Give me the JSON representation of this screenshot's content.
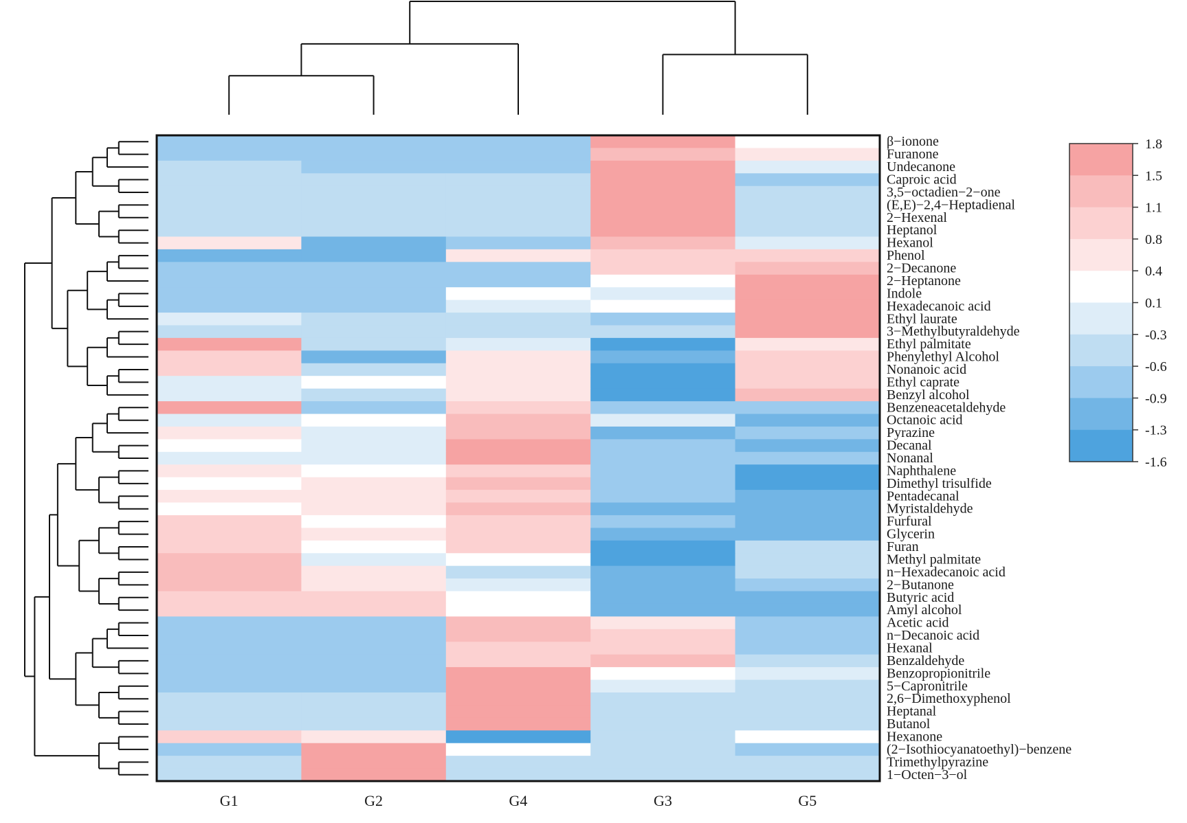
{
  "chart_data": {
    "type": "heatmap",
    "title": "",
    "columns": [
      "G1",
      "G2",
      "G4",
      "G3",
      "G5"
    ],
    "rows": [
      "β−ionone",
      "Furanone",
      "Undecanone",
      "Caproic acid",
      "3,5−octadien−2−one",
      "(E,E)−2,4−Heptadienal",
      "2−Hexenal",
      "Heptanol",
      "Hexanol",
      "Phenol",
      "2−Decanone",
      "2−Heptanone",
      "Indole",
      "Hexadecanoic acid",
      "Ethyl laurate",
      "3−Methylbutyraldehyde",
      "Ethyl palmitate",
      "Phenylethyl Alcohol",
      "Nonanoic acid",
      "Ethyl caprate",
      "Benzyl alcohol",
      "Benzeneacetaldehyde",
      "Octanoic acid",
      "Pyrazine",
      "Decanal",
      "Nonanal",
      "Naphthalene",
      "Dimethyl trisulfide",
      "Pentadecanal",
      "Myristaldehyde",
      "Furfural",
      "Glycerin",
      "Furan",
      "Methyl palmitate",
      "n−Hexadecanoic acid",
      "2−Butanone",
      "Butyric acid",
      "Amyl alcohol",
      "Acetic acid",
      "n−Decanoic acid",
      "Hexanal",
      "Benzaldehyde",
      "Benzopropionitrile",
      "5−Capronitrile",
      "2,6−Dimethoxyphenol",
      "Heptanal",
      "Butanol",
      "Hexanone",
      "(2−Isothiocyanatoethyl)−benzene",
      "Trimethylpyrazine",
      "1−Octen−3−ol"
    ],
    "values": [
      [
        -0.8,
        -0.8,
        -0.8,
        1.6,
        0.2
      ],
      [
        -0.8,
        -0.8,
        -0.8,
        1.2,
        0.5
      ],
      [
        -0.5,
        -0.8,
        -0.8,
        1.6,
        0.0
      ],
      [
        -0.5,
        -0.5,
        -0.5,
        1.6,
        -0.8
      ],
      [
        -0.5,
        -0.5,
        -0.5,
        1.6,
        -0.5
      ],
      [
        -0.5,
        -0.5,
        -0.5,
        1.6,
        -0.5
      ],
      [
        -0.5,
        -0.5,
        -0.5,
        1.6,
        -0.5
      ],
      [
        -0.5,
        -0.5,
        -0.5,
        1.6,
        -0.5
      ],
      [
        0.6,
        -1.2,
        -0.8,
        1.4,
        -0.2
      ],
      [
        -1.2,
        -1.2,
        0.6,
        0.8,
        1.0
      ],
      [
        -0.8,
        -0.8,
        -0.8,
        1.0,
        1.4
      ],
      [
        -0.8,
        -0.8,
        -0.8,
        0.25,
        1.6
      ],
      [
        -0.8,
        -0.8,
        0.25,
        -0.2,
        1.6
      ],
      [
        -0.8,
        -0.8,
        -0.2,
        0.25,
        1.6
      ],
      [
        -0.2,
        -0.5,
        -0.5,
        -0.8,
        1.6
      ],
      [
        -0.5,
        -0.5,
        -0.5,
        -0.5,
        1.6
      ],
      [
        1.6,
        -0.5,
        -0.2,
        -1.4,
        0.6
      ],
      [
        0.8,
        -1.2,
        0.6,
        -1.2,
        1.0
      ],
      [
        0.8,
        -0.5,
        0.6,
        -1.4,
        1.0
      ],
      [
        -0.2,
        0.25,
        0.6,
        -1.4,
        1.0
      ],
      [
        -0.2,
        -0.5,
        0.6,
        -1.4,
        1.4
      ],
      [
        1.6,
        -0.8,
        1.0,
        -0.8,
        -0.8
      ],
      [
        -0.2,
        0.25,
        1.4,
        -0.2,
        -1.2
      ],
      [
        0.6,
        -0.2,
        1.2,
        -1.2,
        -0.8
      ],
      [
        0.25,
        -0.2,
        1.6,
        -0.8,
        -1.2
      ],
      [
        -0.2,
        -0.2,
        1.6,
        -0.8,
        -0.8
      ],
      [
        0.6,
        0.25,
        1.0,
        -0.8,
        -1.4
      ],
      [
        0.25,
        0.6,
        1.4,
        -0.8,
        -1.4
      ],
      [
        0.6,
        0.6,
        1.0,
        -0.8,
        -1.2
      ],
      [
        0.25,
        0.6,
        1.4,
        -1.2,
        -1.2
      ],
      [
        1.0,
        0.25,
        1.0,
        -0.8,
        -1.2
      ],
      [
        1.0,
        0.6,
        1.0,
        -1.2,
        -1.2
      ],
      [
        1.0,
        0.25,
        1.0,
        -1.4,
        -0.5
      ],
      [
        1.4,
        -0.2,
        0.25,
        -1.4,
        -0.5
      ],
      [
        1.4,
        0.6,
        -0.5,
        -1.2,
        -0.5
      ],
      [
        1.4,
        0.6,
        -0.2,
        -1.2,
        -0.8
      ],
      [
        1.0,
        1.0,
        0.25,
        -1.2,
        -1.2
      ],
      [
        1.0,
        1.0,
        0.25,
        -1.2,
        -1.2
      ],
      [
        -0.8,
        -0.8,
        1.4,
        0.6,
        -0.8
      ],
      [
        -0.8,
        -0.8,
        1.4,
        1.0,
        -0.8
      ],
      [
        -0.8,
        -0.8,
        1.0,
        1.0,
        -0.8
      ],
      [
        -0.8,
        -0.8,
        1.0,
        1.4,
        -0.5
      ],
      [
        -0.8,
        -0.8,
        1.6,
        0.25,
        -0.2
      ],
      [
        -0.8,
        -0.8,
        1.6,
        -0.2,
        -0.5
      ],
      [
        -0.5,
        -0.5,
        1.6,
        -0.5,
        -0.5
      ],
      [
        -0.5,
        -0.5,
        1.6,
        -0.5,
        -0.5
      ],
      [
        -0.5,
        -0.5,
        1.6,
        -0.5,
        -0.5
      ],
      [
        0.8,
        0.6,
        -1.4,
        -0.5,
        0.25
      ],
      [
        -0.8,
        1.6,
        0.25,
        -0.5,
        -0.8
      ],
      [
        -0.5,
        1.6,
        -0.5,
        -0.5,
        -0.5
      ],
      [
        -0.5,
        1.6,
        -0.5,
        -0.5,
        -0.5
      ]
    ],
    "legend": {
      "ticks": [
        "1.8",
        "1.5",
        "1.1",
        "0.8",
        "0.4",
        "0.1",
        "-0.3",
        "-0.6",
        "-0.9",
        "-1.3",
        "-1.6"
      ],
      "min": -1.6,
      "max": 1.8,
      "placement": "right"
    },
    "column_dendrogram": {
      "merges": [
        [
          0,
          1
        ],
        [
          5,
          2
        ],
        [
          3,
          4
        ],
        [
          6,
          7
        ]
      ],
      "heights": [
        0.55,
        1.0,
        0.85,
        1.6
      ]
    },
    "row_dendrogram": {
      "leaf_order": "rows",
      "merges": [
        [
          0,
          1,
          0.2
        ],
        [
          2,
          3,
          0.25
        ],
        [
          4,
          5,
          0.1
        ],
        [
          6,
          7,
          0.1
        ],
        [
          53,
          54,
          0.15
        ],
        [
          52,
          55,
          0.3
        ],
        [
          51,
          56,
          0.5
        ],
        [
          50,
          57,
          0.7
        ],
        [
          8,
          58,
          1.2
        ],
        [
          9,
          10,
          0.3
        ],
        [
          11,
          12,
          0.3
        ],
        [
          13,
          14,
          0.35
        ],
        [
          15,
          16,
          0.35
        ],
        [
          61,
          62,
          0.5
        ],
        [
          60,
          63,
          0.65
        ],
        [
          59,
          64,
          0.9
        ],
        [
          17,
          18,
          0.3
        ],
        [
          19,
          20,
          0.3
        ],
        [
          21,
          22,
          0.35
        ],
        [
          67,
          68,
          0.6
        ],
        [
          66,
          69,
          0.75
        ],
        [
          65,
          70,
          1.0
        ],
        [
          71,
          80,
          0.0
        ]
      ],
      "note": "structure approximated"
    },
    "colors": {
      "high": "#f6a3a3",
      "mid": "#ffffff",
      "low": "#4ea3de",
      "steps": [
        "#4ea3de",
        "#72b5e5",
        "#9ccbee",
        "#bfddf2",
        "#deedf8",
        "#ffffff",
        "#fde6e6",
        "#fcd1d1",
        "#f9bcbc",
        "#f6a3a3"
      ]
    }
  }
}
